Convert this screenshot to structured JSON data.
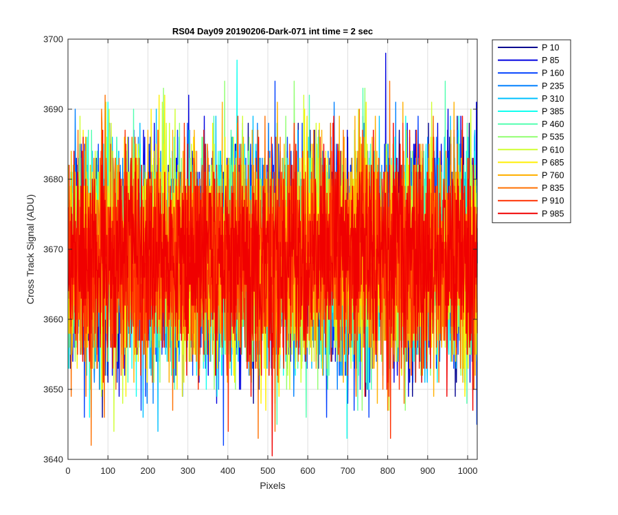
{
  "chart_data": {
    "type": "line",
    "title": "RS04 Day09 20190206-Dark-071 int time = 2 sec",
    "xlabel": "Pixels",
    "ylabel": "Cross Track Signal (ADU)",
    "xlim": [
      0,
      1024
    ],
    "ylim": [
      3640,
      3700
    ],
    "xticks": [
      0,
      100,
      200,
      300,
      400,
      500,
      600,
      700,
      800,
      900,
      1000
    ],
    "yticks": [
      3640,
      3650,
      3660,
      3670,
      3680,
      3690,
      3700
    ],
    "grid": true,
    "legend_position": "outside-right",
    "pixel_count": 1024,
    "series": [
      {
        "name": "P 10",
        "color": "#00008f",
        "mean": 3669,
        "spread": 7.5
      },
      {
        "name": "P 85",
        "color": "#0000e0",
        "mean": 3669,
        "spread": 7.5
      },
      {
        "name": "P 160",
        "color": "#0040ff",
        "mean": 3669,
        "spread": 7.5
      },
      {
        "name": "P 235",
        "color": "#0080ff",
        "mean": 3669,
        "spread": 7.5
      },
      {
        "name": "P 310",
        "color": "#00c0ff",
        "mean": 3669,
        "spread": 7.5
      },
      {
        "name": "P 385",
        "color": "#10ffef",
        "mean": 3669,
        "spread": 7.5
      },
      {
        "name": "P 460",
        "color": "#50ffaf",
        "mean": 3669,
        "spread": 7.5
      },
      {
        "name": "P 535",
        "color": "#90ff70",
        "mean": 3669,
        "spread": 7.5
      },
      {
        "name": "P 610",
        "color": "#cfff30",
        "mean": 3669,
        "spread": 7.5
      },
      {
        "name": "P 685",
        "color": "#ffef00",
        "mean": 3669,
        "spread": 7.5
      },
      {
        "name": "P 760",
        "color": "#ffb000",
        "mean": 3669,
        "spread": 7.5
      },
      {
        "name": "P 835",
        "color": "#ff7000",
        "mean": 3669,
        "spread": 7.5
      },
      {
        "name": "P 910",
        "color": "#ff3000",
        "mean": 3669,
        "spread": 7.5
      },
      {
        "name": "P 985",
        "color": "#f00000",
        "mean": 3669,
        "spread": 7.5
      }
    ]
  }
}
